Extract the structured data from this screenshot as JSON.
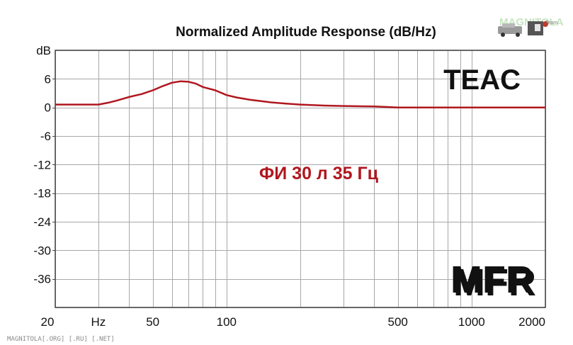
{
  "chart_data": {
    "type": "line",
    "title": "Normalized Amplitude Response (dB/Hz)",
    "x_scale": "log",
    "xlim": [
      20,
      2000
    ],
    "ylim": [
      -42,
      12
    ],
    "y_ticks": [
      6,
      0,
      -6,
      -12,
      -18,
      -24,
      -30,
      -36
    ],
    "y_tick_labels": [
      "6",
      "0",
      "-6",
      "-12",
      "-18",
      "-24",
      "-30",
      "-36"
    ],
    "y_unit_label": "dB",
    "x_tick_labels": [
      {
        "value": 20,
        "label": "20"
      },
      {
        "value": 30,
        "label": "Hz"
      },
      {
        "value": 50,
        "label": "50"
      },
      {
        "value": 100,
        "label": "100"
      },
      {
        "value": 500,
        "label": "500"
      },
      {
        "value": 1000,
        "label": "1000"
      },
      {
        "value": 2000,
        "label": "2000"
      }
    ],
    "x_grid": [
      20,
      30,
      40,
      50,
      60,
      70,
      80,
      90,
      100,
      200,
      300,
      400,
      500,
      600,
      700,
      800,
      900,
      1000,
      2000
    ],
    "y_grid": [
      12,
      6,
      0,
      -6,
      -12,
      -18,
      -24,
      -30,
      -36,
      -42
    ],
    "grid": true,
    "series": [
      {
        "color": "#b0171f",
        "x": [
          20,
          30,
          33,
          36,
          40,
          45,
          50,
          55,
          60,
          65,
          70,
          75,
          80,
          90,
          100,
          110,
          125,
          150,
          175,
          200,
          250,
          300,
          400,
          450,
          500,
          700,
          1000,
          2000
        ],
        "y": [
          0.6,
          0.6,
          1.0,
          1.5,
          2.2,
          2.8,
          3.6,
          4.5,
          5.2,
          5.5,
          5.4,
          5.0,
          4.3,
          3.6,
          2.6,
          2.1,
          1.6,
          1.1,
          0.8,
          0.6,
          0.4,
          0.3,
          0.2,
          0.1,
          0.0,
          0.0,
          0.0,
          0.0
        ]
      }
    ],
    "annotations": {
      "brand": "TEAC",
      "test": "ФИ 30 л 35 Гц",
      "badge": "MFR"
    }
  },
  "colors": {
    "curve": "#b0171f",
    "annotation": "#b0171f",
    "grid": "#a8a8a8",
    "frame": "#444444"
  },
  "watermark": "MAGNITOLA[.ORG] [.RU] [.NET]",
  "logo": {
    "text": "MAGNITOLA",
    "sub": "Team"
  }
}
